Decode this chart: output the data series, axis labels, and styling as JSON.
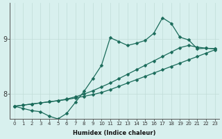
{
  "xlabel": "Humidex (Indice chaleur)",
  "bg_color": "#d8f0ee",
  "line_color": "#1a6b5a",
  "grid_color": "#c0dcd8",
  "xlim": [
    -0.5,
    23.5
  ],
  "ylim": [
    7.55,
    9.65
  ],
  "yticks": [
    8,
    9
  ],
  "xticks": [
    0,
    1,
    2,
    3,
    4,
    5,
    6,
    7,
    8,
    9,
    10,
    11,
    12,
    13,
    14,
    15,
    16,
    17,
    18,
    19,
    20,
    21,
    22,
    23
  ],
  "line1_x": [
    0,
    1,
    2,
    3,
    4,
    5,
    6,
    7,
    8,
    9,
    10,
    11,
    12,
    13,
    14,
    15,
    16,
    17,
    18,
    19,
    20,
    21,
    22,
    23
  ],
  "line1_y": [
    7.78,
    7.8,
    7.82,
    7.84,
    7.86,
    7.88,
    7.9,
    7.93,
    7.96,
    7.99,
    8.03,
    8.08,
    8.14,
    8.2,
    8.26,
    8.32,
    8.38,
    8.44,
    8.5,
    8.56,
    8.62,
    8.68,
    8.74,
    8.8
  ],
  "line2_x": [
    0,
    1,
    2,
    3,
    4,
    5,
    6,
    7,
    8,
    9,
    10,
    11,
    12,
    13,
    14,
    15,
    16,
    17,
    18,
    19,
    20,
    21,
    22,
    23
  ],
  "line2_y": [
    7.78,
    7.8,
    7.82,
    7.84,
    7.86,
    7.88,
    7.91,
    7.95,
    8.0,
    8.06,
    8.13,
    8.2,
    8.28,
    8.36,
    8.44,
    8.52,
    8.6,
    8.68,
    8.76,
    8.84,
    8.88,
    8.85,
    8.83,
    8.82
  ],
  "line3_x": [
    0,
    1,
    2,
    3,
    4,
    5,
    6,
    7,
    8,
    9,
    10,
    11,
    12,
    13,
    14,
    15,
    16,
    17,
    18,
    19,
    20,
    21,
    22,
    23
  ],
  "line3_y": [
    7.78,
    7.74,
    7.7,
    7.68,
    7.6,
    7.55,
    7.65,
    7.85,
    8.05,
    8.28,
    8.52,
    9.02,
    8.95,
    8.88,
    8.92,
    8.97,
    9.1,
    9.38,
    9.28,
    9.03,
    8.98,
    8.82,
    8.83,
    8.82
  ]
}
